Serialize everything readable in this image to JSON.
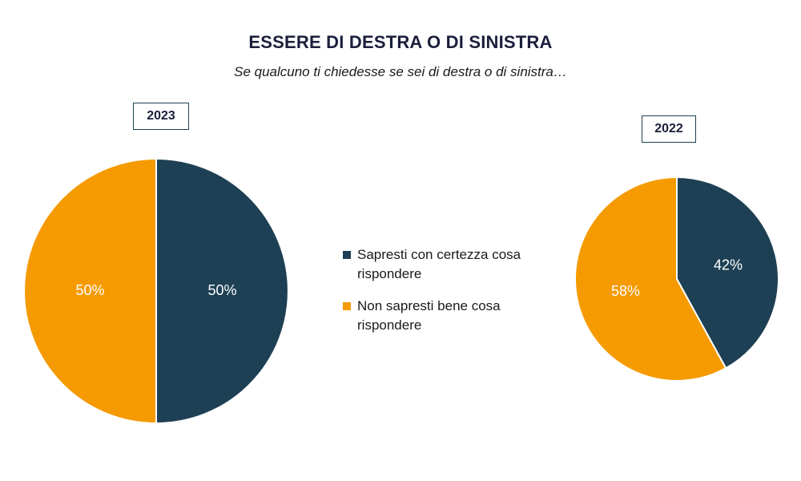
{
  "chart_data": {
    "type": "pie",
    "title": "ESSERE DI DESTRA O DI SINISTRA",
    "subtitle": "Se qualcuno ti chiedesse se sei di destra o di sinistra…",
    "categories": [
      "Sapresti con certezza cosa rispondere",
      "Non sapresti bene cosa rispondere"
    ],
    "colors": [
      "#1e4054",
      "#f59a00"
    ],
    "charts": [
      {
        "year": "2023",
        "values": [
          50,
          50
        ],
        "labels": [
          "50%",
          "50%"
        ]
      },
      {
        "year": "2022",
        "values": [
          42,
          58
        ],
        "labels": [
          "42%",
          "58%"
        ]
      }
    ]
  }
}
